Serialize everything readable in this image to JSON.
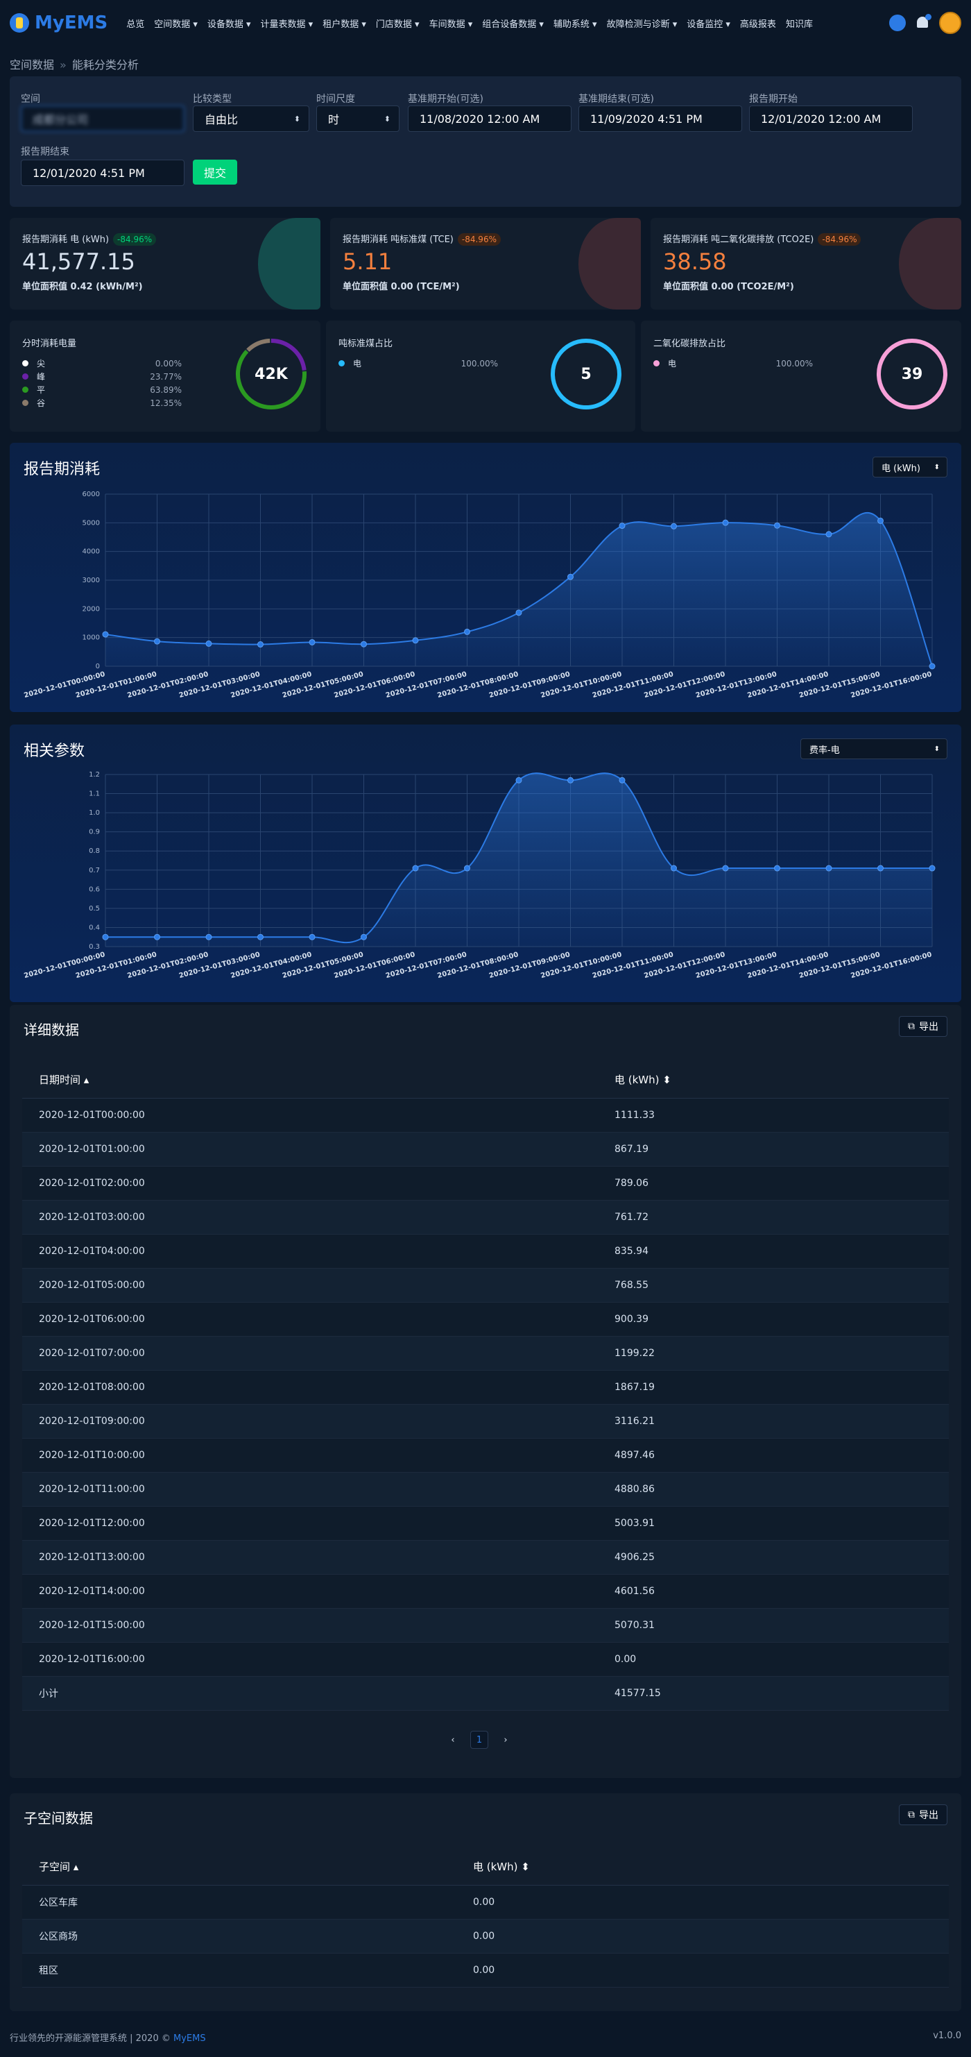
{
  "nav": {
    "logo_text": "MyEMS",
    "items": [
      "总览",
      "空间数据 ▾",
      "设备数据 ▾",
      "计量表数据 ▾",
      "租户数据 ▾",
      "门店数据 ▾",
      "车间数据 ▾",
      "组合设备数据 ▾",
      "辅助系统 ▾",
      "故障检测与诊断 ▾",
      "设备监控 ▾",
      "高级报表",
      "知识库"
    ]
  },
  "breadcrumb": {
    "parent": "空间数据",
    "sep": "»",
    "current": "能耗分类分析"
  },
  "filters": {
    "space_label": "空间",
    "space_value": "成都分公司",
    "compare_label": "比较类型",
    "compare_value": "自由比",
    "period_label": "时间尺度",
    "period_value": "时",
    "base_start_label": "基准期开始(可选)",
    "base_start_value": "11/08/2020 12:00 AM",
    "base_end_label": "基准期结束(可选)",
    "base_end_value": "11/09/2020 4:51 PM",
    "report_start_label": "报告期开始",
    "report_start_value": "12/01/2020 12:00 AM",
    "report_end_label": "报告期结束",
    "report_end_value": "12/01/2020 4:51 PM",
    "submit_label": "提交"
  },
  "kpis": [
    {
      "title": "报告期消耗 电 (kWh)",
      "badge": "-84.96%",
      "value": "41,577.15",
      "sub": "单位面积值 0.42 (kWh/M²)",
      "value_color": "#d8e2ef",
      "badge_bg": "#0d3b2e",
      "badge_color": "#00d27a",
      "deco": "#1aa68a"
    },
    {
      "title": "报告期消耗 吨标准煤 (TCE)",
      "badge": "-84.96%",
      "value": "5.11",
      "sub": "单位面积值 0.00 (TCE/M²)",
      "value_color": "#f5803e",
      "badge_bg": "#3b2417",
      "badge_color": "#f5803e",
      "deco": "#8a3b3b"
    },
    {
      "title": "报告期消耗 吨二氧化碳排放 (TCO2E)",
      "badge": "-84.96%",
      "value": "38.58",
      "sub": "单位面积值 0.00 (TCO2E/M²)",
      "value_color": "#f5803e",
      "badge_bg": "#3b2417",
      "badge_color": "#f5803e",
      "deco": "#8a3b3b"
    }
  ],
  "pies": [
    {
      "title": "分时消耗电量",
      "center": "42K",
      "items": [
        {
          "name": "尖",
          "pct": "0.00%",
          "value": 0,
          "color": "#ffffff"
        },
        {
          "name": "峰",
          "pct": "23.77%",
          "value": 23.77,
          "color": "#6b21a8"
        },
        {
          "name": "平",
          "pct": "63.89%",
          "value": 63.89,
          "color": "#2b9a21"
        },
        {
          "name": "谷",
          "pct": "12.35%",
          "value": 12.35,
          "color": "#8a7a6a"
        }
      ]
    },
    {
      "title": "吨标准煤占比",
      "center": "5",
      "items": [
        {
          "name": "电",
          "pct": "100.00%",
          "value": 100,
          "color": "#27bcfd"
        }
      ]
    },
    {
      "title": "二氧化碳排放占比",
      "center": "39",
      "items": [
        {
          "name": "电",
          "pct": "100.00%",
          "value": 100,
          "color": "#f7a0d8"
        }
      ]
    }
  ],
  "chart_titles": {
    "energy": "报告期消耗",
    "params": "相关参数"
  },
  "chart_selects": {
    "energy": "电 (kWh)",
    "params": "费率-电"
  },
  "chart_data": [
    {
      "type": "area",
      "x": [
        "2020-12-01T00:00:00",
        "2020-12-01T01:00:00",
        "2020-12-01T02:00:00",
        "2020-12-01T03:00:00",
        "2020-12-01T04:00:00",
        "2020-12-01T05:00:00",
        "2020-12-01T06:00:00",
        "2020-12-01T07:00:00",
        "2020-12-01T08:00:00",
        "2020-12-01T09:00:00",
        "2020-12-01T10:00:00",
        "2020-12-01T11:00:00",
        "2020-12-01T12:00:00",
        "2020-12-01T13:00:00",
        "2020-12-01T14:00:00",
        "2020-12-01T15:00:00",
        "2020-12-01T16:00:00"
      ],
      "series": [
        {
          "values": [
            1111.33,
            867.19,
            789.06,
            761.72,
            835.94,
            768.55,
            900.39,
            1199.22,
            1867.19,
            3116.21,
            4897.46,
            4880.86,
            5003.91,
            4906.25,
            4601.56,
            5070.31,
            0
          ]
        }
      ],
      "ylim": [
        0,
        6000
      ],
      "yticks": [
        "0",
        "1000",
        "2000",
        "3000",
        "4000",
        "5000",
        "6000"
      ],
      "grid": true
    },
    {
      "type": "area",
      "x": [
        "2020-12-01T00:00:00",
        "2020-12-01T01:00:00",
        "2020-12-01T02:00:00",
        "2020-12-01T03:00:00",
        "2020-12-01T04:00:00",
        "2020-12-01T05:00:00",
        "2020-12-01T06:00:00",
        "2020-12-01T07:00:00",
        "2020-12-01T08:00:00",
        "2020-12-01T09:00:00",
        "2020-12-01T10:00:00",
        "2020-12-01T11:00:00",
        "2020-12-01T12:00:00",
        "2020-12-01T13:00:00",
        "2020-12-01T14:00:00",
        "2020-12-01T15:00:00",
        "2020-12-01T16:00:00"
      ],
      "series": [
        {
          "values": [
            0.35,
            0.35,
            0.35,
            0.35,
            0.35,
            0.35,
            0.71,
            0.71,
            1.17,
            1.17,
            1.17,
            0.71,
            0.71,
            0.71,
            0.71,
            0.71,
            0.71
          ]
        }
      ],
      "ylim": [
        0.3,
        1.2
      ],
      "yticks": [
        "0.3",
        "0.4",
        "0.5",
        "0.6",
        "0.7",
        "0.8",
        "0.9",
        "1.0",
        "1.1",
        "1.2"
      ],
      "grid": true
    }
  ],
  "detail": {
    "title": "详细数据",
    "export_label": "导出",
    "col1": "日期时间 ▴",
    "col2": "电 (kWh) ⬍",
    "rows": [
      [
        "2020-12-01T00:00:00",
        "1111.33"
      ],
      [
        "2020-12-01T01:00:00",
        "867.19"
      ],
      [
        "2020-12-01T02:00:00",
        "789.06"
      ],
      [
        "2020-12-01T03:00:00",
        "761.72"
      ],
      [
        "2020-12-01T04:00:00",
        "835.94"
      ],
      [
        "2020-12-01T05:00:00",
        "768.55"
      ],
      [
        "2020-12-01T06:00:00",
        "900.39"
      ],
      [
        "2020-12-01T07:00:00",
        "1199.22"
      ],
      [
        "2020-12-01T08:00:00",
        "1867.19"
      ],
      [
        "2020-12-01T09:00:00",
        "3116.21"
      ],
      [
        "2020-12-01T10:00:00",
        "4897.46"
      ],
      [
        "2020-12-01T11:00:00",
        "4880.86"
      ],
      [
        "2020-12-01T12:00:00",
        "5003.91"
      ],
      [
        "2020-12-01T13:00:00",
        "4906.25"
      ],
      [
        "2020-12-01T14:00:00",
        "4601.56"
      ],
      [
        "2020-12-01T15:00:00",
        "5070.31"
      ],
      [
        "2020-12-01T16:00:00",
        "0.00"
      ],
      [
        "小计",
        "41577.15"
      ]
    ],
    "pager": {
      "prev": "‹",
      "page": "1",
      "next": "›"
    }
  },
  "children": {
    "title": "子空间数据",
    "export_label": "导出",
    "col1": "子空间 ▴",
    "col2": "电 (kWh) ⬍",
    "rows": [
      [
        "公区车库",
        "0.00"
      ],
      [
        "公区商场",
        "0.00"
      ],
      [
        "租区",
        "0.00"
      ]
    ]
  },
  "footer": {
    "text": "行业领先的开源能源管理系统 | 2020 © ",
    "link": "MyEMS",
    "version": "v1.0.0"
  }
}
